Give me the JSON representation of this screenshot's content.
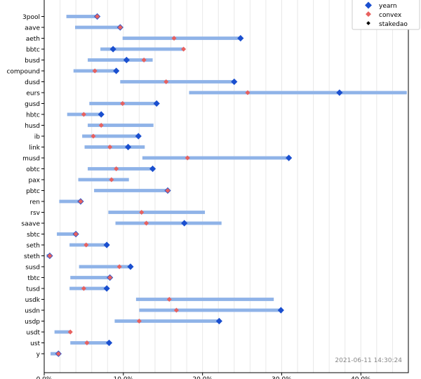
{
  "chart_data": {
    "type": "dot-range",
    "xlim": [
      0,
      0.46
    ],
    "x_ticks": [
      0,
      0.1,
      0.2,
      0.3,
      0.4
    ],
    "x_tick_labels": [
      "0.0%",
      "10.0%",
      "20.0%",
      "30.0%",
      "40.0%"
    ],
    "grid": "vertical minor lines every 2%",
    "legend_position": "top-right",
    "timestamp": "2021-06-11 14:30:24",
    "colors": {
      "range_bar": "#8fb3e8",
      "yearn": "#1a4fcf",
      "convex": "#e8615f",
      "stakedao": "#000000",
      "grid": "#e8e8e8",
      "timestamp": "#888888"
    },
    "legend": [
      {
        "name": "yearn",
        "marker": "diamond-large"
      },
      {
        "name": "convex",
        "marker": "diamond-medium"
      },
      {
        "name": "stakedao",
        "marker": "diamond-small"
      }
    ],
    "pools": [
      {
        "name": "3pool",
        "min": 0.028,
        "max": 0.068,
        "yearn": 0.067,
        "convex": 0.067
      },
      {
        "name": "aave",
        "min": 0.039,
        "max": 0.097,
        "yearn": 0.096,
        "convex": 0.096
      },
      {
        "name": "aeth",
        "min": 0.099,
        "max": 0.249,
        "yearn": 0.248,
        "convex": 0.164
      },
      {
        "name": "bbtc",
        "min": 0.071,
        "max": 0.177,
        "yearn": 0.087,
        "convex": 0.176
      },
      {
        "name": "busd",
        "min": 0.055,
        "max": 0.137,
        "yearn": 0.104,
        "convex": 0.126
      },
      {
        "name": "compound",
        "min": 0.037,
        "max": 0.092,
        "yearn": 0.091,
        "convex": 0.064
      },
      {
        "name": "dusd",
        "min": 0.096,
        "max": 0.241,
        "yearn": 0.24,
        "convex": 0.154
      },
      {
        "name": "eurs",
        "min": 0.183,
        "max": 0.458,
        "yearn": 0.373,
        "convex": 0.257
      },
      {
        "name": "gusd",
        "min": 0.057,
        "max": 0.143,
        "yearn": 0.142,
        "convex": 0.099
      },
      {
        "name": "hbtc",
        "min": 0.029,
        "max": 0.073,
        "yearn": 0.072,
        "convex": 0.05
      },
      {
        "name": "husd",
        "min": 0.055,
        "max": 0.138,
        "yearn": null,
        "convex": 0.072
      },
      {
        "name": "ib",
        "min": 0.048,
        "max": 0.12,
        "yearn": 0.119,
        "convex": 0.062
      },
      {
        "name": "link",
        "min": 0.051,
        "max": 0.127,
        "yearn": 0.106,
        "convex": 0.083
      },
      {
        "name": "musd",
        "min": 0.124,
        "max": 0.31,
        "yearn": 0.309,
        "convex": 0.181
      },
      {
        "name": "obtc",
        "min": 0.055,
        "max": 0.138,
        "yearn": 0.137,
        "convex": 0.091
      },
      {
        "name": "pax",
        "min": 0.043,
        "max": 0.107,
        "yearn": null,
        "convex": 0.085
      },
      {
        "name": "pbtc",
        "min": 0.063,
        "max": 0.157,
        "yearn": 0.156,
        "convex": 0.156
      },
      {
        "name": "ren",
        "min": 0.019,
        "max": 0.047,
        "yearn": 0.046,
        "convex": 0.046
      },
      {
        "name": "rsv",
        "min": 0.081,
        "max": 0.203,
        "yearn": null,
        "convex": 0.123
      },
      {
        "name": "saave",
        "min": 0.09,
        "max": 0.224,
        "yearn": 0.177,
        "convex": 0.129
      },
      {
        "name": "sbtc",
        "min": 0.016,
        "max": 0.041,
        "yearn": 0.04,
        "convex": 0.04
      },
      {
        "name": "seth",
        "min": 0.032,
        "max": 0.08,
        "yearn": 0.079,
        "convex": 0.053
      },
      {
        "name": "steth",
        "min": 0.003,
        "max": 0.008,
        "yearn": 0.007,
        "convex": 0.007
      },
      {
        "name": "susd",
        "min": 0.044,
        "max": 0.11,
        "yearn": 0.109,
        "convex": 0.095
      },
      {
        "name": "tbtc",
        "min": 0.033,
        "max": 0.084,
        "yearn": 0.083,
        "convex": 0.083
      },
      {
        "name": "tusd",
        "min": 0.032,
        "max": 0.08,
        "yearn": 0.079,
        "convex": 0.05
      },
      {
        "name": "usdk",
        "min": 0.116,
        "max": 0.29,
        "yearn": null,
        "convex": 0.158
      },
      {
        "name": "usdn",
        "min": 0.12,
        "max": 0.3,
        "yearn": 0.299,
        "convex": 0.167
      },
      {
        "name": "usdp",
        "min": 0.089,
        "max": 0.222,
        "yearn": 0.221,
        "convex": 0.12
      },
      {
        "name": "usdt",
        "min": 0.013,
        "max": 0.034,
        "yearn": null,
        "convex": 0.033
      },
      {
        "name": "ust",
        "min": 0.033,
        "max": 0.083,
        "yearn": 0.082,
        "convex": 0.054
      },
      {
        "name": "y",
        "min": 0.008,
        "max": 0.019,
        "yearn": 0.018,
        "convex": 0.018
      }
    ]
  }
}
